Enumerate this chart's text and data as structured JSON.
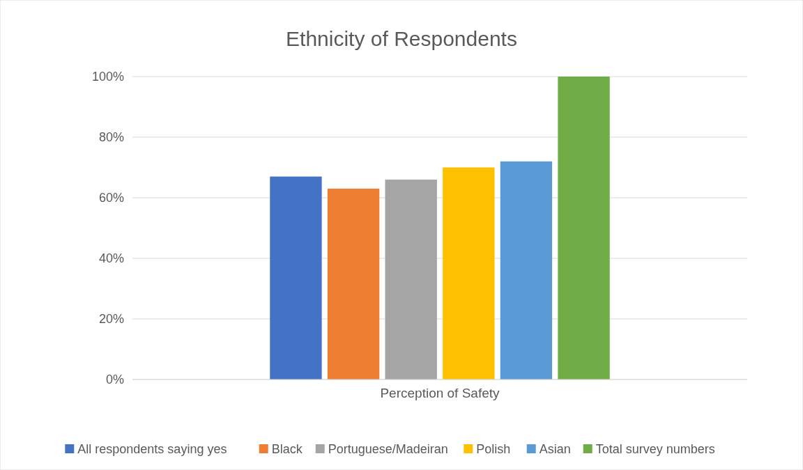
{
  "chart_data": {
    "type": "bar",
    "title": "Ethnicity of Respondents",
    "categories": [
      "Perception of Safety"
    ],
    "series": [
      {
        "name": "All respondents saying yes",
        "color": "#4472c4",
        "values": [
          67
        ]
      },
      {
        "name": "Black",
        "color": "#ed7d31",
        "values": [
          63
        ]
      },
      {
        "name": "Portuguese/Madeiran",
        "color": "#a5a5a5",
        "values": [
          66
        ]
      },
      {
        "name": "Polish",
        "color": "#ffc000",
        "values": [
          70
        ]
      },
      {
        "name": "Asian",
        "color": "#5b9bd5",
        "values": [
          72
        ]
      },
      {
        "name": "Total survey numbers",
        "color": "#70ad47",
        "values": [
          100
        ]
      }
    ],
    "ylim": [
      0,
      100
    ],
    "yticks": [
      {
        "value": 0,
        "label": "0%"
      },
      {
        "value": 20,
        "label": "20%"
      },
      {
        "value": 40,
        "label": "40%"
      },
      {
        "value": 60,
        "label": "60%"
      },
      {
        "value": 80,
        "label": "80%"
      },
      {
        "value": 100,
        "label": "100%"
      }
    ],
    "grid": "y",
    "legend": "bottom"
  }
}
